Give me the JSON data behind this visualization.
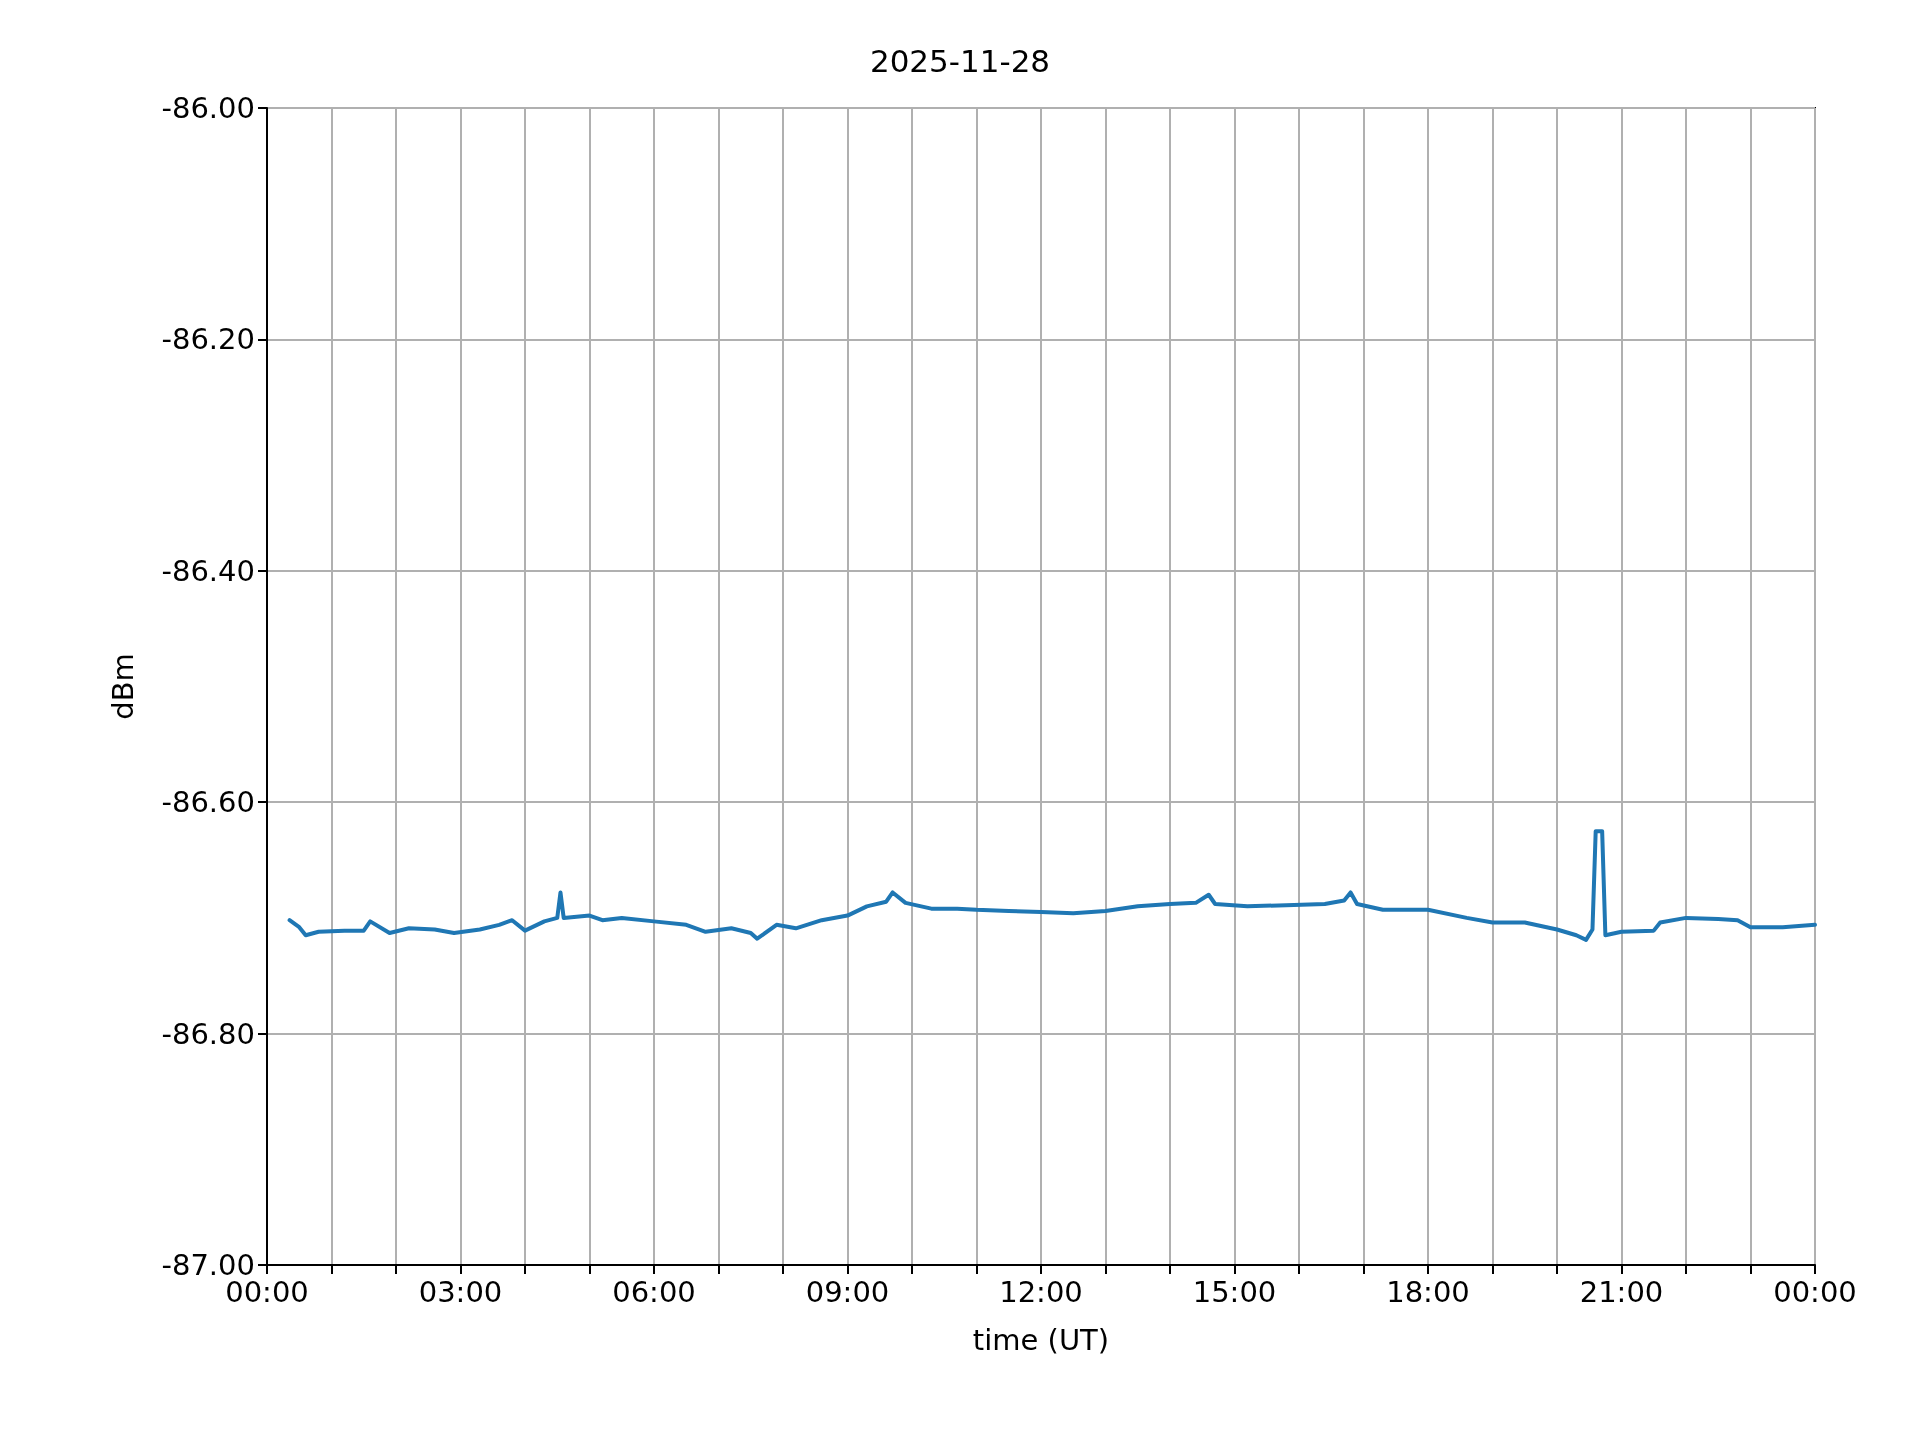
{
  "chart_data": {
    "type": "line",
    "title": "2025-11-28",
    "xlabel": "time (UT)",
    "ylabel": "dBm",
    "x": [
      0.35,
      0.5,
      0.6,
      0.8,
      1.2,
      1.5,
      1.6,
      1.9,
      2.2,
      2.6,
      2.9,
      3.3,
      3.6,
      3.8,
      4.0,
      4.3,
      4.5,
      4.55,
      4.6,
      5.0,
      5.2,
      5.5,
      6.0,
      6.5,
      6.8,
      7.2,
      7.5,
      7.6,
      7.9,
      8.2,
      8.6,
      9.0,
      9.3,
      9.6,
      9.7,
      9.9,
      10.3,
      10.7,
      11.0,
      11.5,
      12.0,
      12.5,
      13.0,
      13.5,
      14.0,
      14.4,
      14.6,
      14.7,
      15.2,
      15.8,
      16.4,
      16.7,
      16.8,
      16.9,
      17.3,
      18.0,
      18.6,
      19.0,
      19.5,
      20.0,
      20.3,
      20.45,
      20.55,
      20.6,
      20.7,
      20.75,
      21.0,
      21.5,
      21.6,
      22.0,
      22.5,
      22.8,
      23.0,
      23.5,
      24.0
    ],
    "series": [
      {
        "color": "#1f77b4",
        "values": [
          -86.702,
          -86.708,
          -86.715,
          -86.712,
          -86.711,
          -86.711,
          -86.703,
          -86.713,
          -86.709,
          -86.71,
          -86.713,
          -86.71,
          -86.706,
          -86.702,
          -86.711,
          -86.703,
          -86.7,
          -86.678,
          -86.7,
          -86.698,
          -86.702,
          -86.7,
          -86.703,
          -86.706,
          -86.712,
          -86.709,
          -86.713,
          -86.718,
          -86.706,
          -86.709,
          -86.702,
          -86.698,
          -86.69,
          -86.686,
          -86.678,
          -86.687,
          -86.692,
          -86.692,
          -86.693,
          -86.694,
          -86.695,
          -86.696,
          -86.694,
          -86.69,
          -86.688,
          -86.687,
          -86.68,
          -86.688,
          -86.69,
          -86.689,
          -86.688,
          -86.685,
          -86.678,
          -86.688,
          -86.693,
          -86.693,
          -86.7,
          -86.704,
          -86.704,
          -86.71,
          -86.715,
          -86.719,
          -86.71,
          -86.625,
          -86.625,
          -86.715,
          -86.712,
          -86.711,
          -86.704,
          -86.7,
          -86.701,
          -86.702,
          -86.708,
          -86.708,
          -86.706
        ]
      }
    ],
    "xlim": [
      0,
      24
    ],
    "xticks": [
      {
        "value": 0,
        "label": "00:00"
      },
      {
        "value": 1,
        "label": null
      },
      {
        "value": 2,
        "label": null
      },
      {
        "value": 3,
        "label": "03:00"
      },
      {
        "value": 4,
        "label": null
      },
      {
        "value": 5,
        "label": null
      },
      {
        "value": 6,
        "label": "06:00"
      },
      {
        "value": 7,
        "label": null
      },
      {
        "value": 8,
        "label": null
      },
      {
        "value": 9,
        "label": "09:00"
      },
      {
        "value": 10,
        "label": null
      },
      {
        "value": 11,
        "label": null
      },
      {
        "value": 12,
        "label": "12:00"
      },
      {
        "value": 13,
        "label": null
      },
      {
        "value": 14,
        "label": null
      },
      {
        "value": 15,
        "label": "15:00"
      },
      {
        "value": 16,
        "label": null
      },
      {
        "value": 17,
        "label": null
      },
      {
        "value": 18,
        "label": "18:00"
      },
      {
        "value": 19,
        "label": null
      },
      {
        "value": 20,
        "label": null
      },
      {
        "value": 21,
        "label": "21:00"
      },
      {
        "value": 22,
        "label": null
      },
      {
        "value": 23,
        "label": null
      },
      {
        "value": 24,
        "label": "00:00"
      }
    ],
    "ylim": [
      -87,
      -86
    ],
    "yticks": [
      {
        "value": -87,
        "label": "-87.00"
      },
      {
        "value": -86.8,
        "label": "-86.80"
      },
      {
        "value": -86.6,
        "label": "-86.60"
      },
      {
        "value": -86.4,
        "label": "-86.40"
      },
      {
        "value": -86.2,
        "label": "-86.20"
      },
      {
        "value": -86,
        "label": "-86.00"
      }
    ],
    "grid": true,
    "marker": "none",
    "line_style": "solid"
  }
}
